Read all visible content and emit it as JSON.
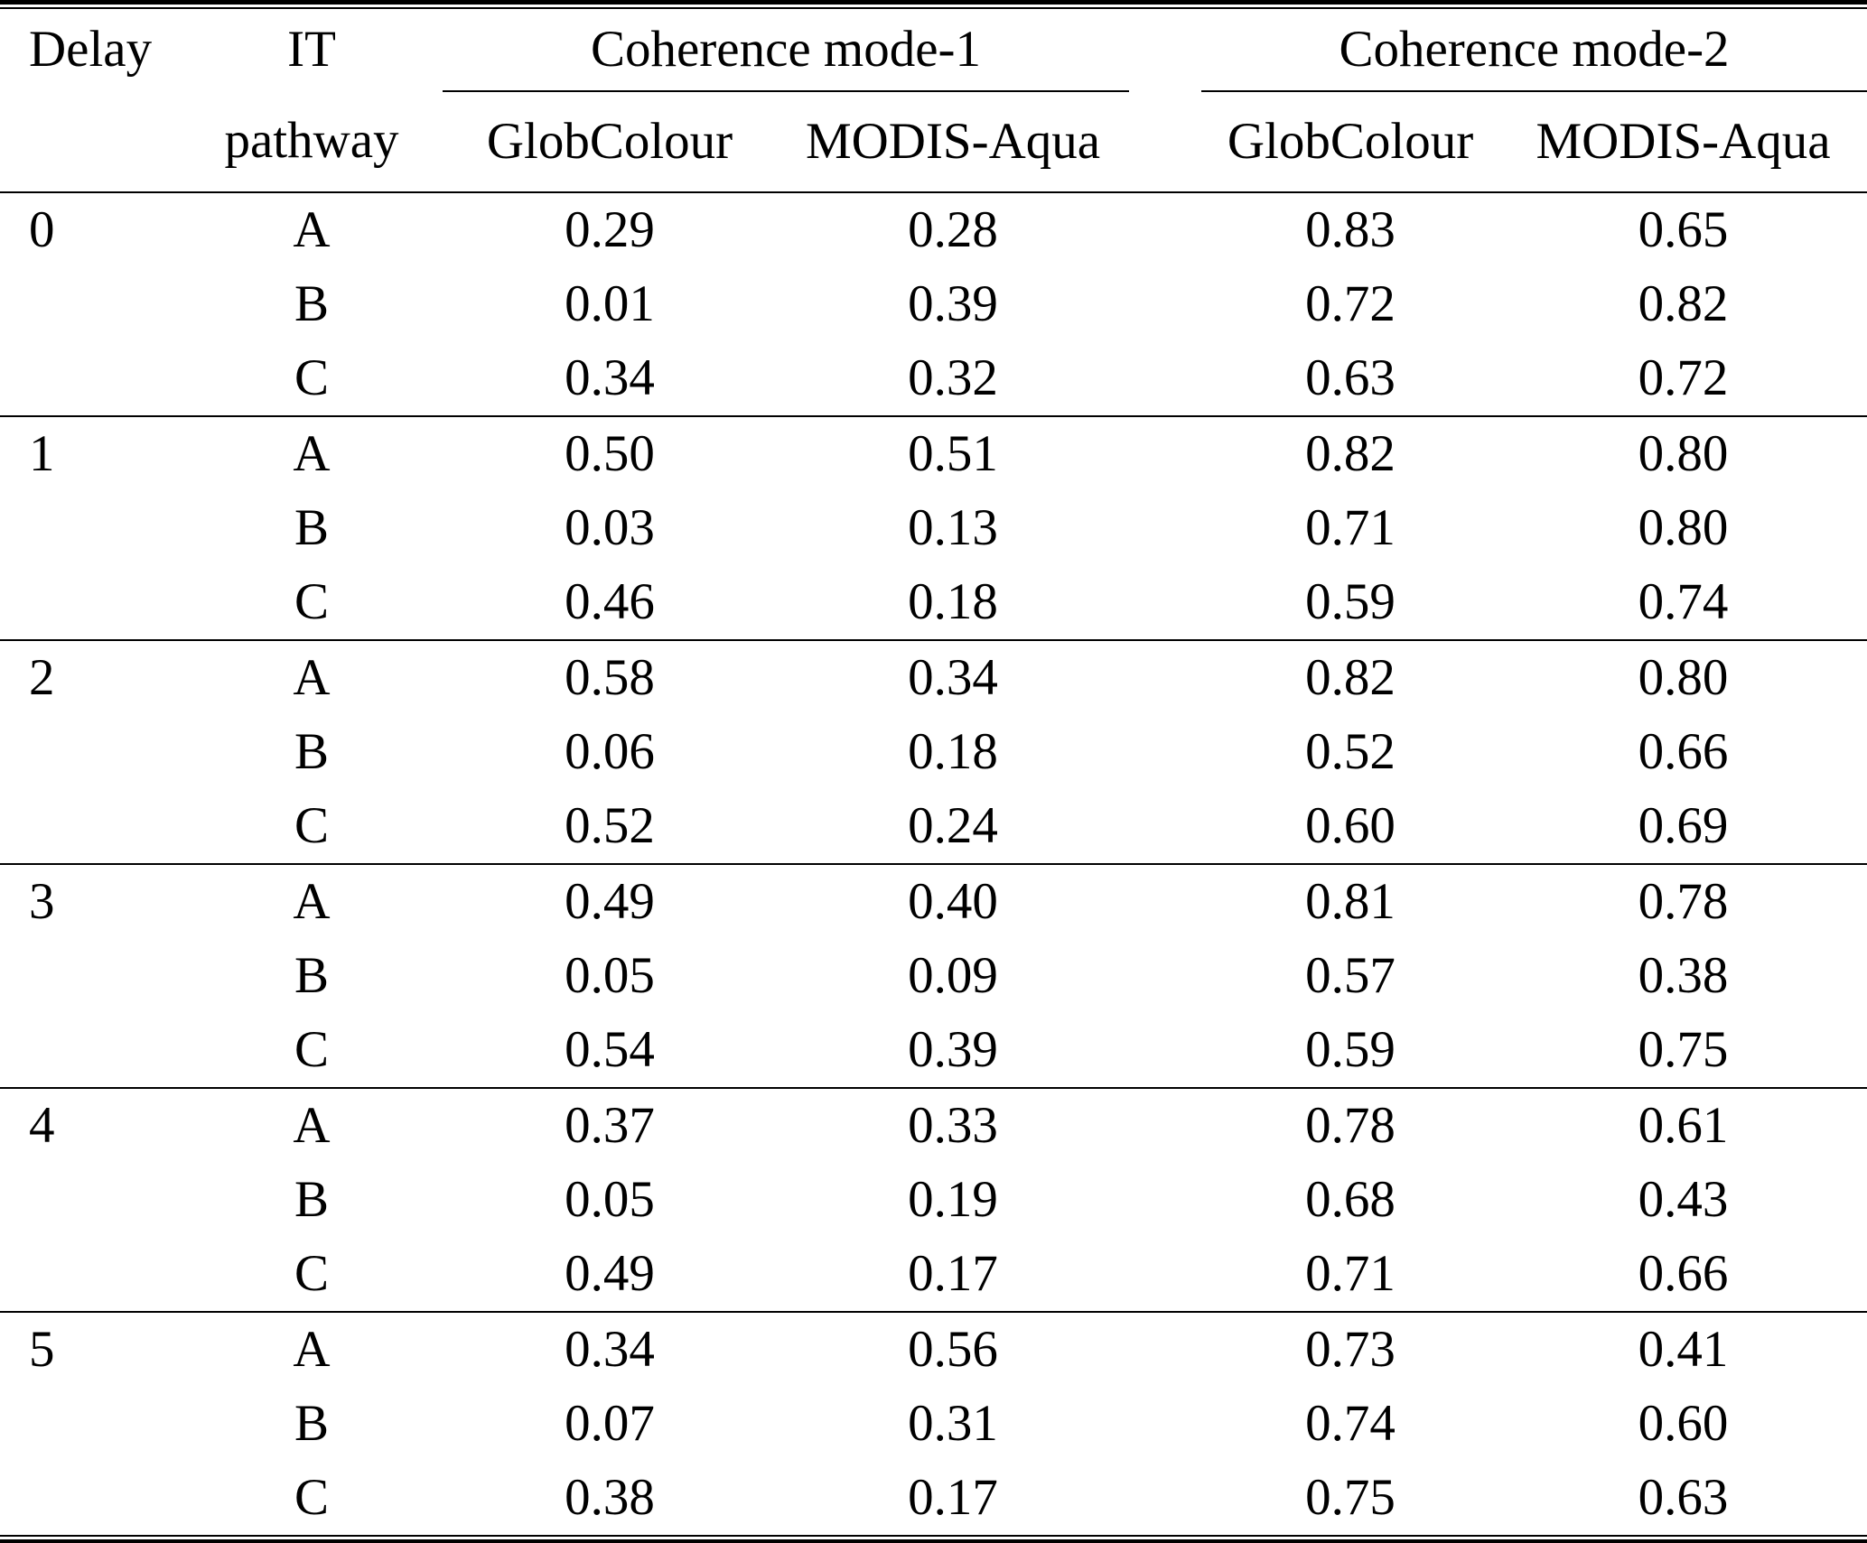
{
  "table": {
    "columns": {
      "delay": "Delay",
      "pathway_line1": "IT",
      "pathway_line2": "pathway",
      "group1": "Coherence mode-1",
      "group2": "Coherence mode-2",
      "group1_sub1": "GlobColour",
      "group1_sub2": "MODIS-Aqua",
      "group2_sub1": "GlobColour",
      "group2_sub2": "MODIS-Aqua"
    },
    "groups": [
      {
        "delay": "0",
        "rows": [
          {
            "pathway": "A",
            "m1_glob": "0.29",
            "m1_modis": "0.28",
            "m2_glob": "0.83",
            "m2_modis": "0.65"
          },
          {
            "pathway": "B",
            "m1_glob": "0.01",
            "m1_modis": "0.39",
            "m2_glob": "0.72",
            "m2_modis": "0.82"
          },
          {
            "pathway": "C",
            "m1_glob": "0.34",
            "m1_modis": "0.32",
            "m2_glob": "0.63",
            "m2_modis": "0.72"
          }
        ]
      },
      {
        "delay": "1",
        "rows": [
          {
            "pathway": "A",
            "m1_glob": "0.50",
            "m1_modis": "0.51",
            "m2_glob": "0.82",
            "m2_modis": "0.80"
          },
          {
            "pathway": "B",
            "m1_glob": "0.03",
            "m1_modis": "0.13",
            "m2_glob": "0.71",
            "m2_modis": "0.80"
          },
          {
            "pathway": "C",
            "m1_glob": "0.46",
            "m1_modis": "0.18",
            "m2_glob": "0.59",
            "m2_modis": "0.74"
          }
        ]
      },
      {
        "delay": "2",
        "rows": [
          {
            "pathway": "A",
            "m1_glob": "0.58",
            "m1_modis": "0.34",
            "m2_glob": "0.82",
            "m2_modis": "0.80"
          },
          {
            "pathway": "B",
            "m1_glob": "0.06",
            "m1_modis": "0.18",
            "m2_glob": "0.52",
            "m2_modis": "0.66"
          },
          {
            "pathway": "C",
            "m1_glob": "0.52",
            "m1_modis": "0.24",
            "m2_glob": "0.60",
            "m2_modis": "0.69"
          }
        ]
      },
      {
        "delay": "3",
        "rows": [
          {
            "pathway": "A",
            "m1_glob": "0.49",
            "m1_modis": "0.40",
            "m2_glob": "0.81",
            "m2_modis": "0.78"
          },
          {
            "pathway": "B",
            "m1_glob": "0.05",
            "m1_modis": "0.09",
            "m2_glob": "0.57",
            "m2_modis": "0.38"
          },
          {
            "pathway": "C",
            "m1_glob": "0.54",
            "m1_modis": "0.39",
            "m2_glob": "0.59",
            "m2_modis": "0.75"
          }
        ]
      },
      {
        "delay": "4",
        "rows": [
          {
            "pathway": "A",
            "m1_glob": "0.37",
            "m1_modis": "0.33",
            "m2_glob": "0.78",
            "m2_modis": "0.61"
          },
          {
            "pathway": "B",
            "m1_glob": "0.05",
            "m1_modis": "0.19",
            "m2_glob": "0.68",
            "m2_modis": "0.43"
          },
          {
            "pathway": "C",
            "m1_glob": "0.49",
            "m1_modis": "0.17",
            "m2_glob": "0.71",
            "m2_modis": "0.66"
          }
        ]
      },
      {
        "delay": "5",
        "rows": [
          {
            "pathway": "A",
            "m1_glob": "0.34",
            "m1_modis": "0.56",
            "m2_glob": "0.73",
            "m2_modis": "0.41"
          },
          {
            "pathway": "B",
            "m1_glob": "0.07",
            "m1_modis": "0.31",
            "m2_glob": "0.74",
            "m2_modis": "0.60"
          },
          {
            "pathway": "C",
            "m1_glob": "0.38",
            "m1_modis": "0.17",
            "m2_glob": "0.75",
            "m2_modis": "0.63"
          }
        ]
      }
    ],
    "colors": {
      "text": "#000000",
      "rule": "#000000",
      "background": "#ffffff"
    }
  }
}
